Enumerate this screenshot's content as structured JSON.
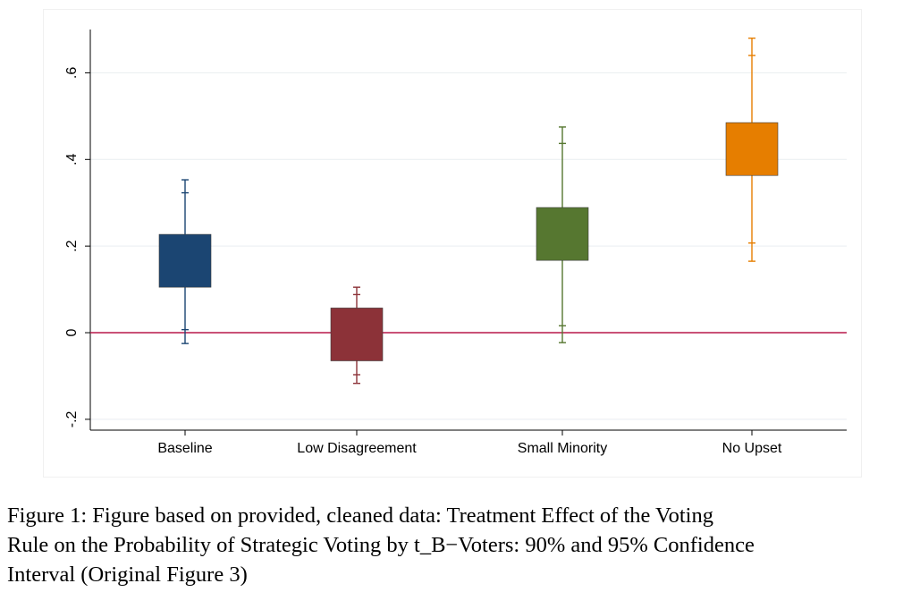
{
  "chart_data": {
    "type": "box",
    "categories": [
      "Baseline",
      "Low Disagreement",
      "Small Minority",
      "No Upset"
    ],
    "series": [
      {
        "ci90_low": [
          0.105,
          -0.065,
          0.167,
          0.363
        ],
        "ci90_high": [
          0.227,
          0.057,
          0.289,
          0.485
        ],
        "whisker_inner_low": [
          0.007,
          -0.097,
          0.016,
          0.207
        ],
        "whisker_inner_high": [
          0.323,
          0.088,
          0.437,
          0.64
        ],
        "whisker_low": [
          -0.025,
          -0.117,
          -0.023,
          0.165
        ],
        "whisker_high": [
          0.353,
          0.105,
          0.475,
          0.68
        ]
      }
    ],
    "colors": [
      "#1b4572",
      "#8c3238",
      "#567730",
      "#e67e00"
    ],
    "reference_line": {
      "y": 0,
      "color": "#b8184a"
    },
    "y_ticks": [
      -0.2,
      0,
      0.2,
      0.4,
      0.6
    ],
    "y_tick_labels": [
      "-.2",
      "0",
      ".2",
      ".4",
      ".6"
    ],
    "ylim": [
      -0.225,
      0.7
    ],
    "grid": true,
    "xlabel": "",
    "ylabel": ""
  },
  "caption": {
    "lines": [
      "Figure 1: Figure based on provided, cleaned data: Treatment Effect of the Voting",
      "Rule on the Probability of Strategic Voting by t_B−Voters: 90% and 95% Confidence",
      "Interval (Original Figure 3)"
    ]
  }
}
